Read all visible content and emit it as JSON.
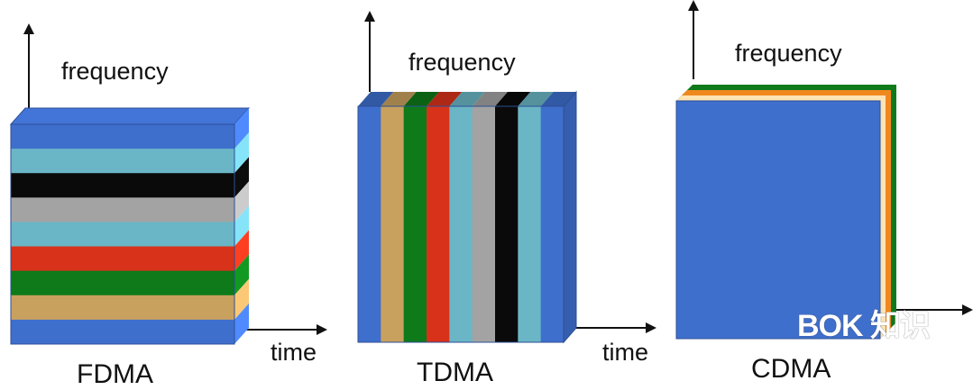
{
  "colors": {
    "blue": "#3f6fcd",
    "teal": "#6ab6c6",
    "black": "#0a0a0a",
    "gray": "#a3a3a3",
    "red": "#d8321a",
    "green": "#0e7a1a",
    "tan": "#c9a15e",
    "orange": "#f0881e",
    "cream": "#fde4b4",
    "arrow": "#111111"
  },
  "panels": [
    {
      "key": "fdma",
      "title": "FDMA",
      "y_axis_label": "frequency",
      "x_axis_label": "time",
      "orientation": "horizontal",
      "bands": [
        "blue",
        "teal",
        "black",
        "gray",
        "teal",
        "red",
        "green",
        "tan",
        "blue"
      ]
    },
    {
      "key": "tdma",
      "title": "TDMA",
      "y_axis_label": "frequency",
      "x_axis_label": "time",
      "orientation": "vertical",
      "bands": [
        "blue",
        "tan",
        "green",
        "red",
        "teal",
        "gray",
        "black",
        "teal",
        "blue"
      ]
    },
    {
      "key": "cdma",
      "title": "CDMA",
      "y_axis_label": "frequency",
      "x_axis_label": "",
      "orientation": "layered",
      "bands": [
        "blue",
        "cream",
        "orange",
        "green"
      ]
    }
  ],
  "watermark": "BOK 知识"
}
